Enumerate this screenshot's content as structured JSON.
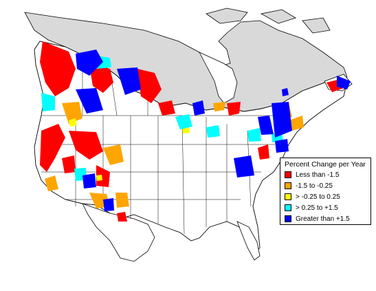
{
  "legend": {
    "title": "Percent Change per Year",
    "items": [
      {
        "label": "Less than -1.5",
        "color": "#ff0000"
      },
      {
        "label": "-1.5 to -0.25",
        "color": "#ffa500"
      },
      {
        "label": "> -0.25 to 0.25",
        "color": "#ffff00"
      },
      {
        "label": "> 0.25 to +1.5",
        "color": "#00ffff"
      },
      {
        "label": "Greater than +1.5",
        "color": "#0000ff"
      }
    ]
  },
  "map": {
    "land_fill": "#ffffff",
    "no_data_fill": "#d9d9d9",
    "border_color": "#000000"
  }
}
